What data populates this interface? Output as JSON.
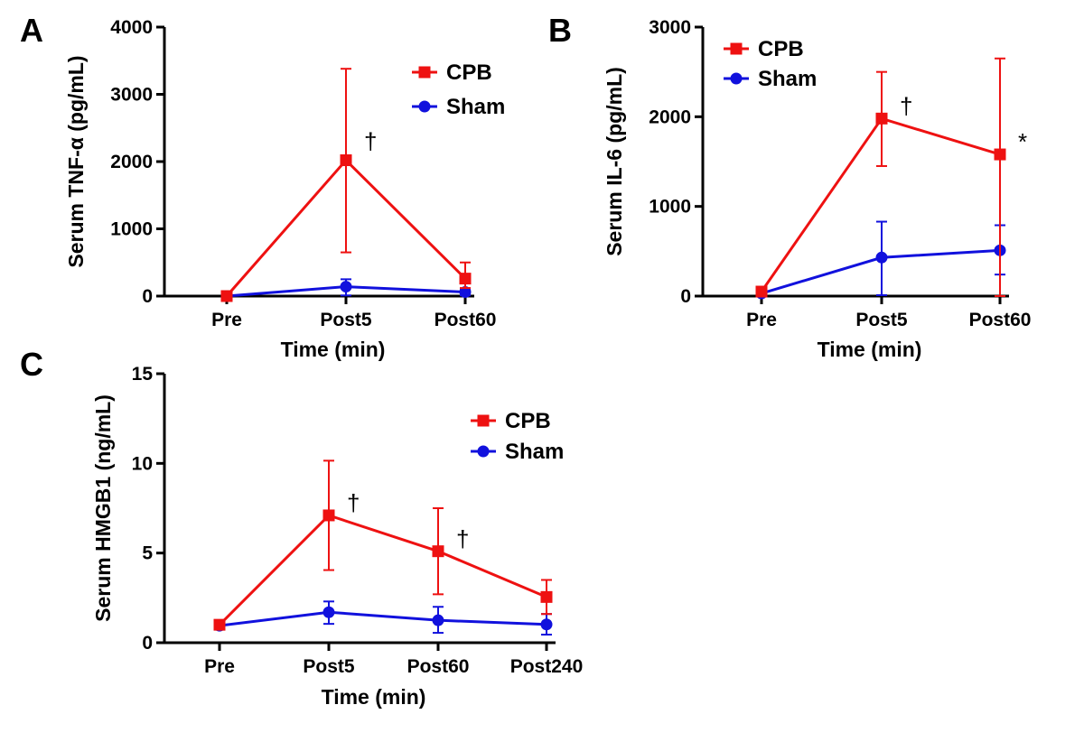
{
  "colors": {
    "CPB": "#ee1111",
    "Sham": "#1111dd"
  },
  "chart_data": [
    {
      "panel": "A",
      "type": "line",
      "xlabel": "Time (min)",
      "ylabel": "Serum TNF-α (pg/mL)",
      "categories": [
        "Pre",
        "Post5",
        "Post60"
      ],
      "ylim": [
        0,
        4000
      ],
      "yticks": [
        0,
        1000,
        2000,
        3000,
        4000
      ],
      "legend_position": "top-right",
      "series": [
        {
          "name": "CPB",
          "marker": "square",
          "values": [
            0,
            2020,
            260
          ],
          "err_low": [
            0,
            650,
            120
          ],
          "err_high": [
            0,
            3380,
            500
          ]
        },
        {
          "name": "Sham",
          "marker": "circle",
          "values": [
            0,
            140,
            60
          ],
          "err_low": [
            0,
            10,
            10
          ],
          "err_high": [
            0,
            250,
            110
          ]
        }
      ],
      "annotations": [
        {
          "text": "†",
          "category": "Post5",
          "value": 2300
        }
      ]
    },
    {
      "panel": "B",
      "type": "line",
      "xlabel": "Time (min)",
      "ylabel": "Serum IL-6 (pg/mL)",
      "categories": [
        "Pre",
        "Post5",
        "Post60"
      ],
      "ylim": [
        0,
        3000
      ],
      "yticks": [
        0,
        1000,
        2000,
        3000
      ],
      "legend_position": "top-left",
      "series": [
        {
          "name": "CPB",
          "marker": "square",
          "values": [
            50,
            1980,
            1580
          ],
          "err_low": [
            50,
            1450,
            0
          ],
          "err_high": [
            50,
            2500,
            2650
          ]
        },
        {
          "name": "Sham",
          "marker": "circle",
          "values": [
            30,
            430,
            510
          ],
          "err_low": [
            30,
            10,
            240
          ],
          "err_high": [
            30,
            830,
            790
          ]
        }
      ],
      "annotations": [
        {
          "text": "†",
          "category": "Post5",
          "value": 2120
        },
        {
          "text": "*",
          "category": "Post60",
          "value": 1720
        }
      ]
    },
    {
      "panel": "C",
      "type": "line",
      "xlabel": "Time (min)",
      "ylabel": "Serum HMGB1 (ng/mL)",
      "categories": [
        "Pre",
        "Post5",
        "Post60",
        "Post240"
      ],
      "ylim": [
        0,
        15
      ],
      "yticks": [
        0,
        5,
        10,
        15
      ],
      "legend_position": "top-right",
      "series": [
        {
          "name": "CPB",
          "marker": "square",
          "values": [
            1.0,
            7.1,
            5.1,
            2.55
          ],
          "err_low": [
            1.0,
            4.05,
            2.7,
            1.6
          ],
          "err_high": [
            1.0,
            10.15,
            7.5,
            3.5
          ]
        },
        {
          "name": "Sham",
          "marker": "circle",
          "values": [
            0.95,
            1.7,
            1.25,
            1.02
          ],
          "err_low": [
            0.95,
            1.05,
            0.55,
            0.45
          ],
          "err_high": [
            0.95,
            2.3,
            2.0,
            1.6
          ]
        }
      ],
      "annotations": [
        {
          "text": "†",
          "category": "Post5",
          "value": 7.8
        },
        {
          "text": "†",
          "category": "Post60",
          "value": 5.8
        }
      ]
    }
  ]
}
